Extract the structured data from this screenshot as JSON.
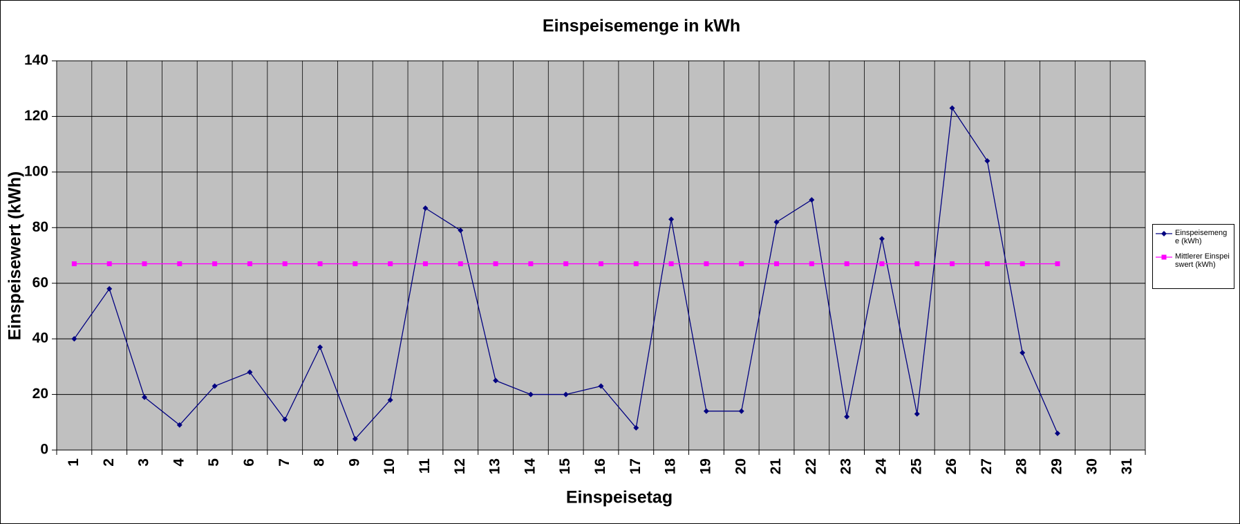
{
  "chart_data": {
    "type": "line",
    "title": "Einspeisemenge in kWh",
    "x_label": "Einspeisetag",
    "y_label": "Einspeisewert  (kWh)",
    "categories": [
      "1",
      "2",
      "3",
      "4",
      "5",
      "6",
      "7",
      "8",
      "9",
      "10",
      "11",
      "12",
      "13",
      "14",
      "15",
      "16",
      "17",
      "18",
      "19",
      "20",
      "21",
      "22",
      "23",
      "24",
      "25",
      "26",
      "27",
      "28",
      "29",
      "30",
      "31"
    ],
    "series": [
      {
        "name": "Einspeisemenge (kWh)",
        "color": "#000080",
        "marker": "diamond",
        "values": [
          40,
          58,
          19,
          9,
          23,
          28,
          11,
          37,
          4,
          18,
          87,
          79,
          25,
          20,
          20,
          23,
          8,
          83,
          14,
          14,
          82,
          90,
          12,
          76,
          13,
          123,
          104,
          35,
          6,
          null,
          null
        ]
      },
      {
        "name": "Mittlerer Einspeiswert (kWh)",
        "color": "#ff00ff",
        "marker": "square",
        "values": [
          67,
          67,
          67,
          67,
          67,
          67,
          67,
          67,
          67,
          67,
          67,
          67,
          67,
          67,
          67,
          67,
          67,
          67,
          67,
          67,
          67,
          67,
          67,
          67,
          67,
          67,
          67,
          67,
          67,
          null,
          null
        ]
      }
    ],
    "ylim": [
      0,
      140
    ],
    "yticks": [
      0,
      20,
      40,
      60,
      80,
      100,
      120,
      140
    ],
    "grid": true,
    "legend": "right",
    "plot_background": "#c0c0c0"
  }
}
